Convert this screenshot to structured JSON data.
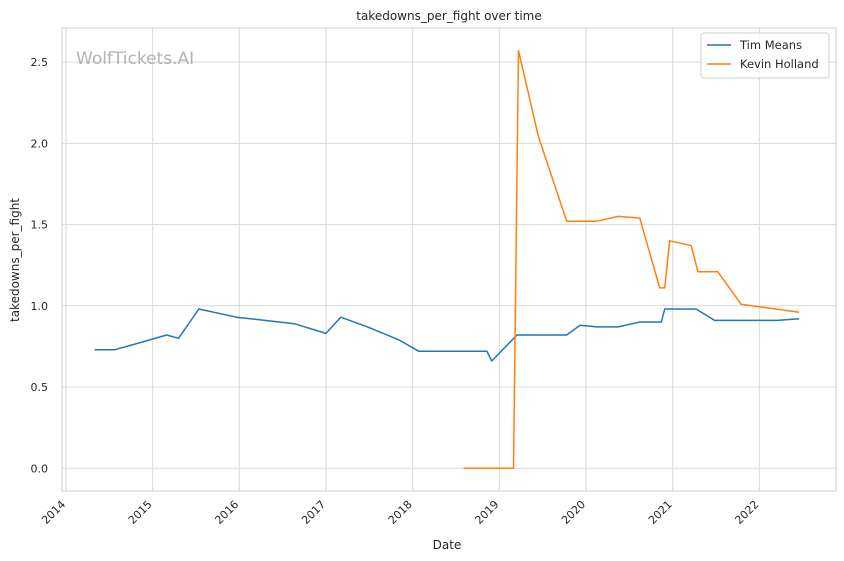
{
  "chart_data": {
    "type": "line",
    "title": "takedowns_per_fight over time",
    "xlabel": "Date",
    "ylabel": "takedowns_per_fight",
    "watermark": "WolfTickets.AI",
    "x_ticks": [
      "2014",
      "2015",
      "2016",
      "2017",
      "2018",
      "2019",
      "2020",
      "2021",
      "2022"
    ],
    "y_ticks": [
      "0.0",
      "0.5",
      "1.0",
      "1.5",
      "2.0",
      "2.5"
    ],
    "xlim": [
      "2013-12-15",
      "2022-11-20"
    ],
    "ylim": [
      -0.14,
      2.71
    ],
    "grid": true,
    "legend_position": "top-right",
    "series": [
      {
        "name": "Tim Means",
        "color": "#1f77b4",
        "points": [
          [
            "2014-05-01",
            0.73
          ],
          [
            "2014-07-26",
            0.73
          ],
          [
            "2014-12-20",
            0.79
          ],
          [
            "2015-03-01",
            0.82
          ],
          [
            "2015-04-20",
            0.8
          ],
          [
            "2015-07-15",
            0.98
          ],
          [
            "2015-12-20",
            0.93
          ],
          [
            "2016-08-20",
            0.89
          ],
          [
            "2016-12-31",
            0.83
          ],
          [
            "2017-03-04",
            0.93
          ],
          [
            "2017-06-25",
            0.87
          ],
          [
            "2017-11-04",
            0.79
          ],
          [
            "2018-01-27",
            0.72
          ],
          [
            "2018-11-10",
            0.72
          ],
          [
            "2018-11-30",
            0.66
          ],
          [
            "2019-03-16",
            0.82
          ],
          [
            "2019-10-12",
            0.82
          ],
          [
            "2019-12-07",
            0.88
          ],
          [
            "2020-02-15",
            0.87
          ],
          [
            "2020-05-16",
            0.87
          ],
          [
            "2020-08-15",
            0.9
          ],
          [
            "2020-11-14",
            0.9
          ],
          [
            "2020-11-28",
            0.98
          ],
          [
            "2021-04-10",
            0.98
          ],
          [
            "2021-06-26",
            0.91
          ],
          [
            "2022-03-19",
            0.91
          ],
          [
            "2022-06-18",
            0.92
          ]
        ]
      },
      {
        "name": "Kevin Holland",
        "color": "#ff7f0e",
        "points": [
          [
            "2018-08-04",
            0.0
          ],
          [
            "2019-03-02",
            0.0
          ],
          [
            "2019-03-23",
            2.57
          ],
          [
            "2019-06-15",
            2.04
          ],
          [
            "2019-10-12",
            1.52
          ],
          [
            "2020-02-15",
            1.52
          ],
          [
            "2020-05-16",
            1.55
          ],
          [
            "2020-08-15",
            1.54
          ],
          [
            "2020-11-07",
            1.11
          ],
          [
            "2020-11-28",
            1.11
          ],
          [
            "2020-12-19",
            1.4
          ],
          [
            "2021-03-20",
            1.37
          ],
          [
            "2021-04-17",
            1.21
          ],
          [
            "2021-07-10",
            1.21
          ],
          [
            "2021-10-16",
            1.01
          ],
          [
            "2022-06-18",
            0.96
          ]
        ]
      }
    ]
  }
}
